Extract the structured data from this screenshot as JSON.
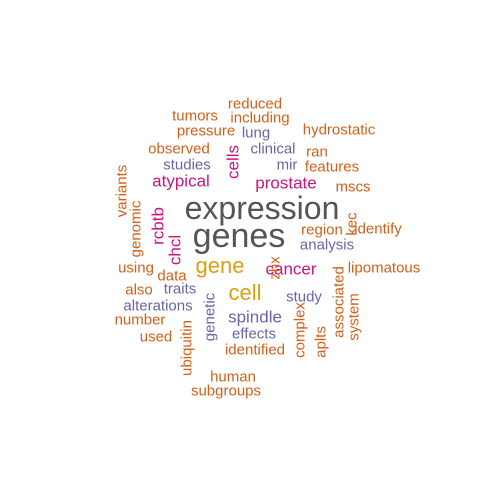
{
  "palette": {
    "gray": "#555555",
    "gold": "#d9a010",
    "magenta": "#cc1480",
    "purple": "#6a64a8",
    "orange": "#d2601a"
  },
  "words": [
    {
      "text": "expression",
      "color": "gray"
    },
    {
      "text": "genes",
      "color": "gray"
    },
    {
      "text": "gene",
      "color": "gold"
    },
    {
      "text": "cell",
      "color": "gold"
    },
    {
      "text": "cancer",
      "color": "magenta"
    },
    {
      "text": "prostate",
      "color": "magenta"
    },
    {
      "text": "atypical",
      "color": "magenta"
    },
    {
      "text": "cells",
      "color": "magenta"
    },
    {
      "text": "rcbtb",
      "color": "magenta"
    },
    {
      "text": "chcl",
      "color": "magenta"
    },
    {
      "text": "spindle",
      "color": "purple"
    },
    {
      "text": "analysis",
      "color": "purple"
    },
    {
      "text": "study",
      "color": "purple"
    },
    {
      "text": "traits",
      "color": "purple"
    },
    {
      "text": "alterations",
      "color": "purple"
    },
    {
      "text": "effects",
      "color": "purple"
    },
    {
      "text": "genetic",
      "color": "purple"
    },
    {
      "text": "studies",
      "color": "purple"
    },
    {
      "text": "clinical",
      "color": "purple"
    },
    {
      "text": "lung",
      "color": "purple"
    },
    {
      "text": "mir",
      "color": "purple"
    },
    {
      "text": "reduced",
      "color": "orange"
    },
    {
      "text": "tumors",
      "color": "orange"
    },
    {
      "text": "including",
      "color": "orange"
    },
    {
      "text": "pressure",
      "color": "orange"
    },
    {
      "text": "hydrostatic",
      "color": "orange"
    },
    {
      "text": "observed",
      "color": "orange"
    },
    {
      "text": "ran",
      "color": "orange"
    },
    {
      "text": "features",
      "color": "orange"
    },
    {
      "text": "mscs",
      "color": "orange"
    },
    {
      "text": "variants",
      "color": "orange"
    },
    {
      "text": "genomic",
      "color": "orange"
    },
    {
      "text": "region",
      "color": "orange"
    },
    {
      "text": "identify",
      "color": "orange"
    },
    {
      "text": "kec",
      "color": "orange"
    },
    {
      "text": "using",
      "color": "orange"
    },
    {
      "text": "data",
      "color": "orange"
    },
    {
      "text": "lipomatous",
      "color": "orange"
    },
    {
      "text": "also",
      "color": "orange"
    },
    {
      "text": "zhx",
      "color": "orange"
    },
    {
      "text": "number",
      "color": "orange"
    },
    {
      "text": "used",
      "color": "orange"
    },
    {
      "text": "ubiquitin",
      "color": "orange"
    },
    {
      "text": "identified",
      "color": "orange"
    },
    {
      "text": "complex",
      "color": "orange"
    },
    {
      "text": "aplts",
      "color": "orange"
    },
    {
      "text": "associated",
      "color": "orange"
    },
    {
      "text": "system",
      "color": "orange"
    },
    {
      "text": "human",
      "color": "orange"
    },
    {
      "text": "subgroups",
      "color": "orange"
    }
  ]
}
